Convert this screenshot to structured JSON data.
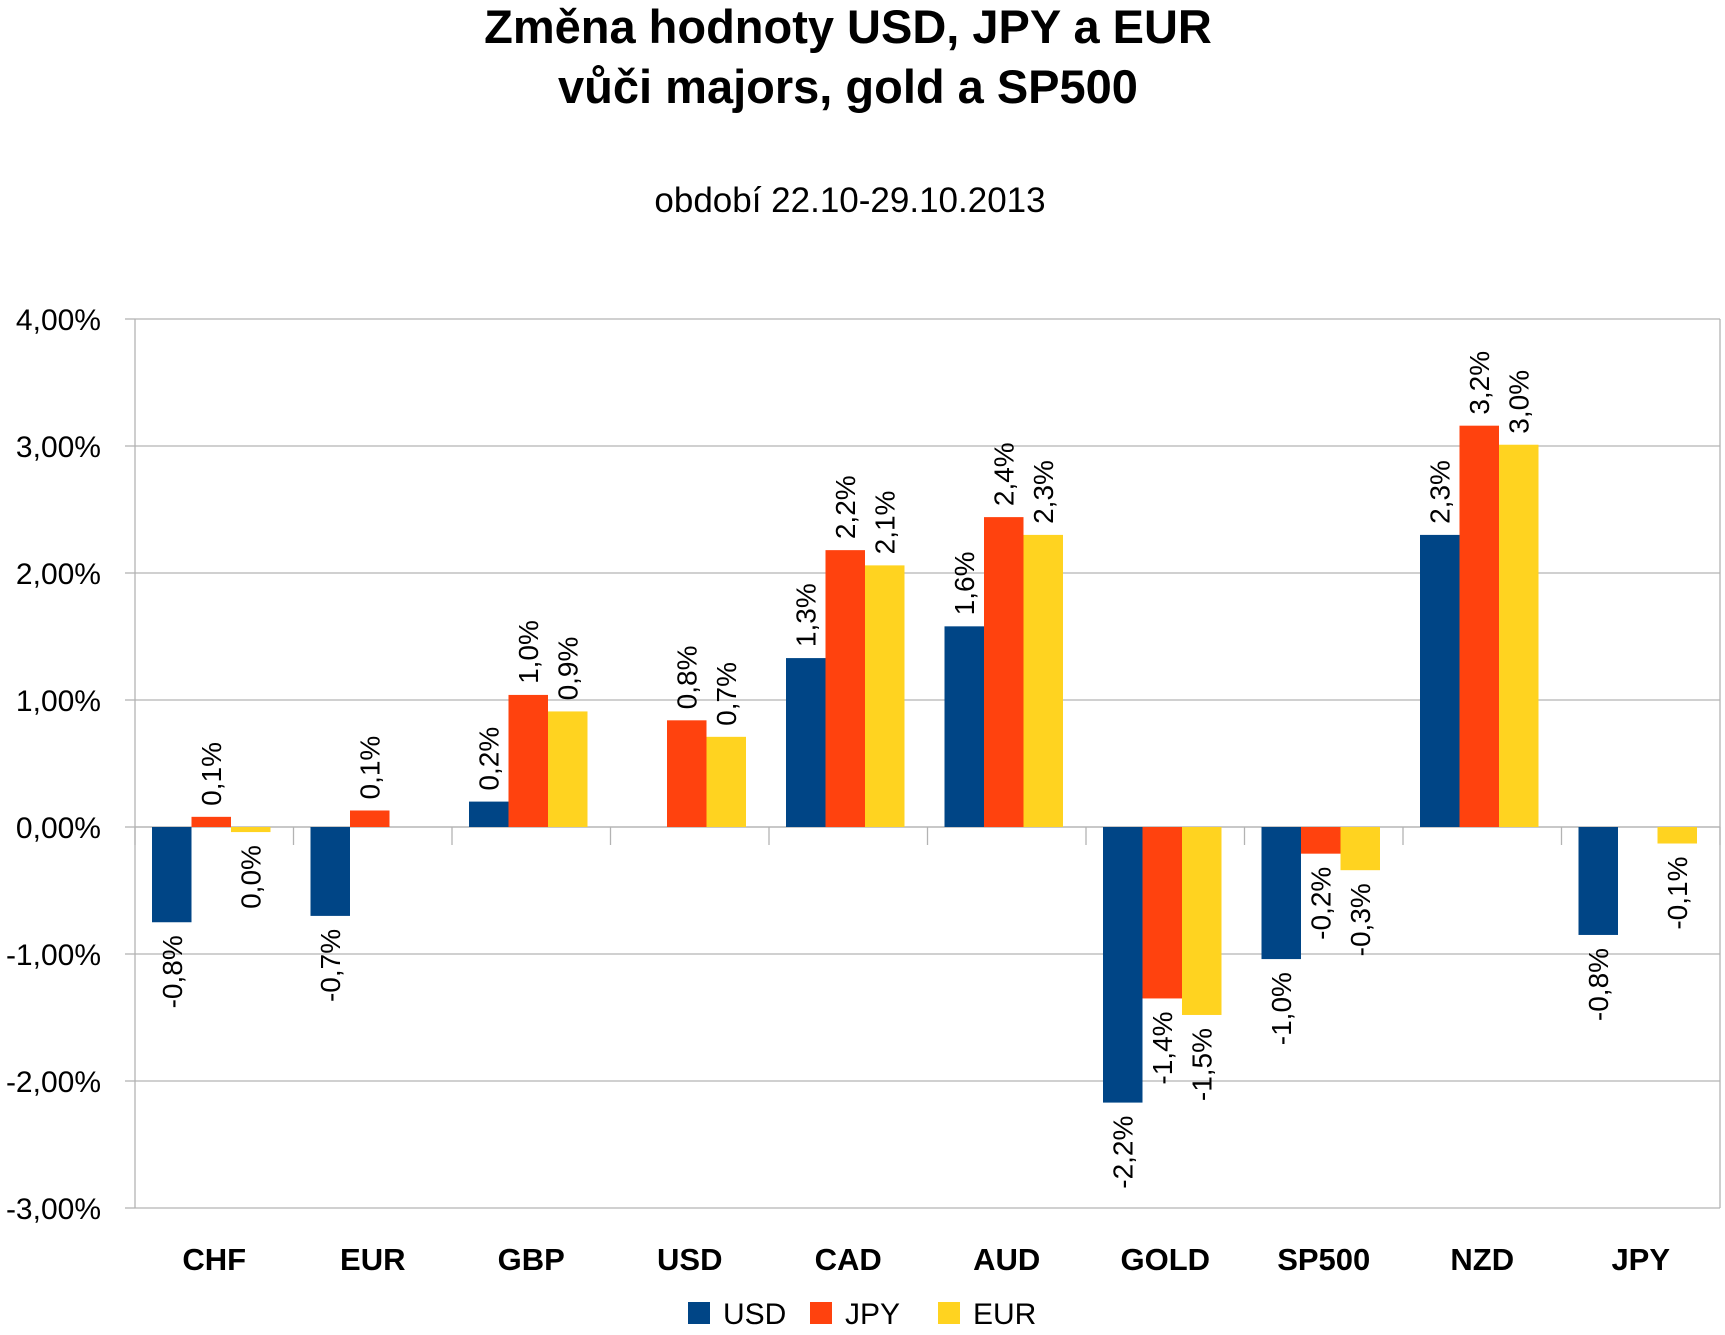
{
  "chart_data": {
    "type": "bar",
    "title": "Změna hodnoty USD, JPY a EUR",
    "title_line2": "vůči majors, gold a SP500",
    "subtitle": "období 22.10-29.10.2013",
    "xlabel": "",
    "ylabel": "",
    "categories": [
      "CHF",
      "EUR",
      "GBP",
      "USD",
      "CAD",
      "AUD",
      "GOLD",
      "SP500",
      "NZD",
      "JPY"
    ],
    "ylim": [
      -3.0,
      4.0
    ],
    "yticks": [
      4.0,
      3.0,
      2.0,
      1.0,
      0.0,
      -1.0,
      -2.0,
      -3.0
    ],
    "ytick_labels": [
      "4,00%",
      "3,00%",
      "2,00%",
      "1,00%",
      "0,00%",
      "-1,00%",
      "-2,00%",
      "-3,00%"
    ],
    "grid": true,
    "legend_position": "bottom",
    "series": [
      {
        "name": "USD",
        "color": "#004586",
        "values": [
          -0.75,
          -0.7,
          0.2,
          null,
          1.33,
          1.58,
          -2.17,
          -1.04,
          2.3,
          -0.85
        ],
        "labels": [
          "-0,8%",
          "-0,7%",
          "0,2%",
          null,
          "1,3%",
          "1,6%",
          "-2,2%",
          "-1,0%",
          "2,3%",
          "-0,8%"
        ]
      },
      {
        "name": "JPY",
        "color": "#ff420e",
        "values": [
          0.08,
          0.13,
          1.04,
          0.84,
          2.18,
          2.44,
          -1.35,
          -0.21,
          3.16,
          null
        ],
        "labels": [
          "0,1%",
          "0,1%",
          "1,0%",
          "0,8%",
          "2,2%",
          "2,4%",
          "-1,4%",
          "-0,2%",
          "3,2%",
          null
        ]
      },
      {
        "name": "EUR",
        "color": "#ffd320",
        "values": [
          -0.04,
          null,
          0.91,
          0.71,
          2.06,
          2.3,
          -1.48,
          -0.34,
          3.01,
          -0.13
        ],
        "labels": [
          "0,0%",
          null,
          "0,9%",
          "0,7%",
          "2,1%",
          "2,3%",
          "-1,5%",
          "-0,3%",
          "3,0%",
          "-0,1%"
        ]
      }
    ]
  }
}
